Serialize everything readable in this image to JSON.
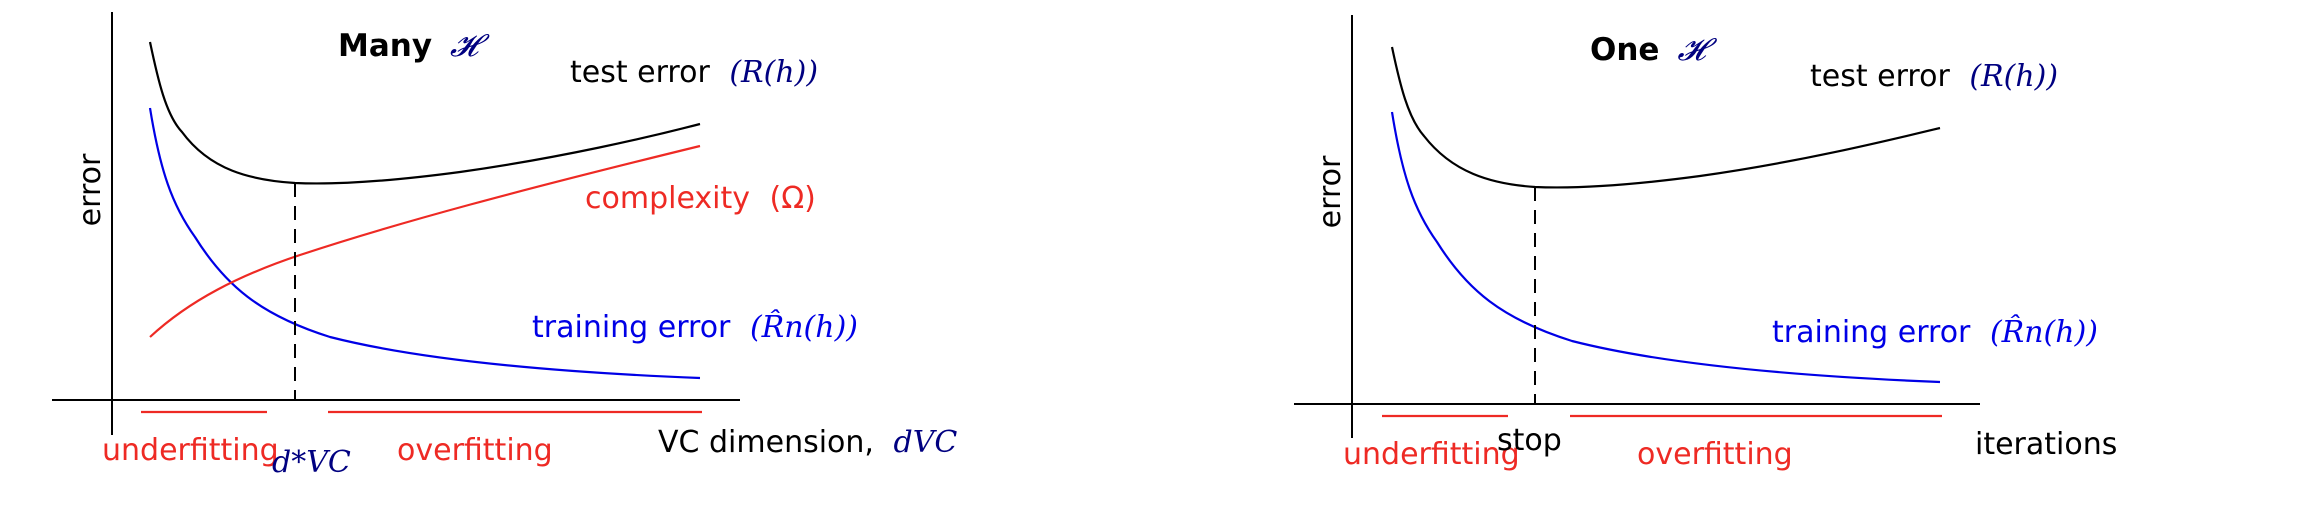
{
  "panels": [
    {
      "title_bold": "Many",
      "title_math": "𝓗",
      "y_axis_label": "error",
      "test_error_label": "test error",
      "test_error_math": "(R(h))",
      "complexity_label": "complexity",
      "complexity_math": "(Ω)",
      "training_error_label": "training error",
      "training_error_math": "(R̂n(h))",
      "x_axis_label": "VC dimension,",
      "x_axis_math": "dVC",
      "marker_label": "d*VC",
      "underfitting_label": "underfitting",
      "overfitting_label": "overfitting"
    },
    {
      "title_bold": "One",
      "title_math": "𝓗",
      "y_axis_label": "error",
      "test_error_label": "test error",
      "test_error_math": "(R(h))",
      "training_error_label": "training error",
      "training_error_math": "(R̂n(h))",
      "x_axis_label": "iterations",
      "marker_label": "stop",
      "underfitting_label": "underfitting",
      "overfitting_label": "overfitting"
    }
  ],
  "colors": {
    "test_error": "#000000",
    "training_error": "#0000e6",
    "complexity": "#ee2a24",
    "regions": "#ee2a24",
    "math_accent": "#000080",
    "axes": "#000000"
  }
}
